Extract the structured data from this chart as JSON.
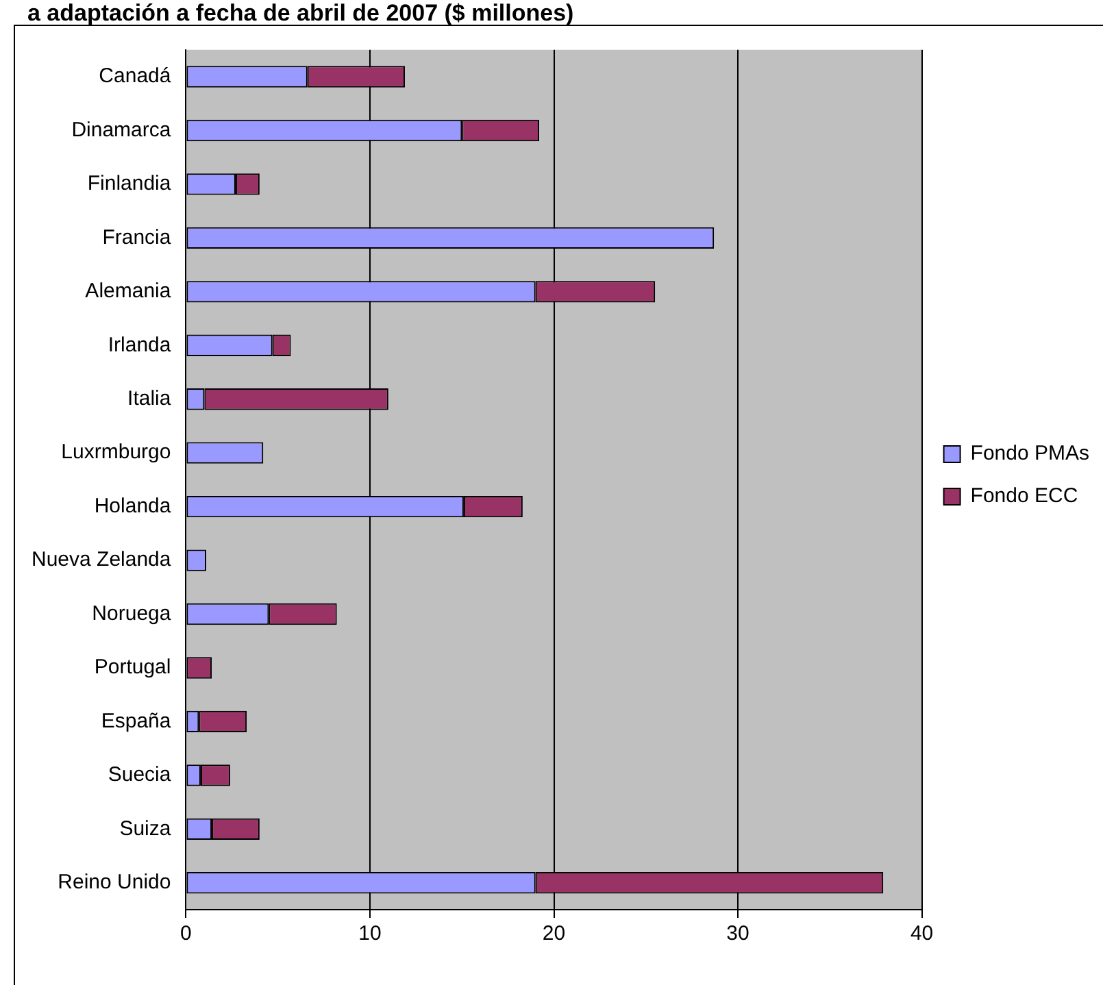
{
  "chart_data": {
    "type": "bar",
    "orientation": "horizontal",
    "stacked": true,
    "title": "a adaptación a fecha de abril de 2007 ($ millones)",
    "categories": [
      "Canadá",
      "Dinamarca",
      "Finlandia",
      "Francia",
      "Alemania",
      "Irlanda",
      "Italia",
      "Luxrmburgo",
      "Holanda",
      "Nueva Zelanda",
      "Noruega",
      "Portugal",
      "España",
      "Suecia",
      "Suiza",
      "Reino Unido"
    ],
    "series": [
      {
        "name": "Fondo PMAs",
        "color": "#9999ff",
        "values": [
          6.6,
          15,
          2.7,
          28.7,
          19,
          4.7,
          1,
          4.2,
          15.1,
          1.1,
          4.5,
          null,
          0.7,
          0.8,
          1.4,
          19
        ]
      },
      {
        "name": "Fondo ECC",
        "color": "#993366",
        "values": [
          5.3,
          4.2,
          1.3,
          null,
          6.5,
          1,
          10,
          null,
          3.2,
          null,
          3.7,
          1.4,
          2.6,
          1.6,
          2.6,
          18.9
        ]
      }
    ],
    "xlim": [
      0,
      40
    ],
    "xticks": [
      0,
      10,
      20,
      30,
      40
    ],
    "grid": "x",
    "legend": "right"
  }
}
